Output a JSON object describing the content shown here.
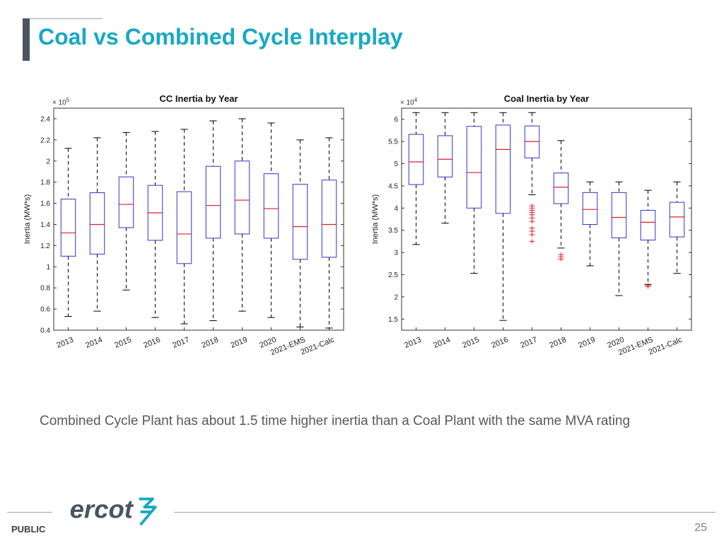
{
  "slide": {
    "title": "Coal vs Combined Cycle Interplay",
    "caption": "Combined Cycle Plant has about 1.5 time higher inertia than a Coal Plant with the same MVA rating",
    "footer_label": "PUBLIC",
    "page_number": "25",
    "logo_text": "ercot"
  },
  "colors": {
    "title": "#17a9c4",
    "box": "#3333cc",
    "median": "#e02020",
    "outlier": "#e02020",
    "whisker": "#000000"
  },
  "chart_data": [
    {
      "type": "box",
      "title": "CC Inertia by Year",
      "ylabel": "Inertia (MW*s)",
      "exponent_label": "× 10^5",
      "ylim": [
        0.4,
        2.5
      ],
      "yticks": [
        0.4,
        0.6,
        0.8,
        1,
        1.2,
        1.4,
        1.6,
        1.8,
        2,
        2.2,
        2.4
      ],
      "categories": [
        "2013",
        "2014",
        "2015",
        "2016",
        "2017",
        "2018",
        "2019",
        "2020",
        "2021-EMS",
        "2021-Calc"
      ],
      "boxes": [
        {
          "min": 0.53,
          "q1": 1.1,
          "median": 1.32,
          "q3": 1.64,
          "max": 2.12,
          "outliers": []
        },
        {
          "min": 0.58,
          "q1": 1.12,
          "median": 1.4,
          "q3": 1.7,
          "max": 2.22,
          "outliers": []
        },
        {
          "min": 0.78,
          "q1": 1.37,
          "median": 1.59,
          "q3": 1.85,
          "max": 2.27,
          "outliers": []
        },
        {
          "min": 0.52,
          "q1": 1.25,
          "median": 1.51,
          "q3": 1.77,
          "max": 2.28,
          "outliers": []
        },
        {
          "min": 0.46,
          "q1": 1.03,
          "median": 1.31,
          "q3": 1.71,
          "max": 2.3,
          "outliers": []
        },
        {
          "min": 0.49,
          "q1": 1.27,
          "median": 1.58,
          "q3": 1.95,
          "max": 2.38,
          "outliers": []
        },
        {
          "min": 0.58,
          "q1": 1.31,
          "median": 1.63,
          "q3": 2.0,
          "max": 2.4,
          "outliers": []
        },
        {
          "min": 0.52,
          "q1": 1.27,
          "median": 1.55,
          "q3": 1.88,
          "max": 2.36,
          "outliers": []
        },
        {
          "min": 0.43,
          "q1": 1.07,
          "median": 1.38,
          "q3": 1.78,
          "max": 2.2,
          "outliers": []
        },
        {
          "min": 0.42,
          "q1": 1.09,
          "median": 1.4,
          "q3": 1.82,
          "max": 2.22,
          "outliers": []
        }
      ]
    },
    {
      "type": "box",
      "title": "Coal Inertia by Year",
      "ylabel": "Inertia (MW*s)",
      "exponent_label": "× 10^4",
      "ylim": [
        1.25,
        6.25
      ],
      "yticks": [
        1.5,
        2,
        2.5,
        3,
        3.5,
        4,
        4.5,
        5,
        5.5,
        6
      ],
      "categories": [
        "2013",
        "2014",
        "2015",
        "2016",
        "2017",
        "2018",
        "2019",
        "2020",
        "2021-EMS",
        "2021-Calc"
      ],
      "boxes": [
        {
          "min": 3.18,
          "q1": 4.53,
          "median": 5.04,
          "q3": 5.66,
          "max": 6.15,
          "outliers": []
        },
        {
          "min": 3.66,
          "q1": 4.7,
          "median": 5.1,
          "q3": 5.63,
          "max": 6.15,
          "outliers": []
        },
        {
          "min": 2.53,
          "q1": 4.0,
          "median": 4.8,
          "q3": 5.84,
          "max": 6.15,
          "outliers": []
        },
        {
          "min": 1.47,
          "q1": 3.88,
          "median": 5.32,
          "q3": 5.87,
          "max": 6.15,
          "outliers": []
        },
        {
          "min": 4.3,
          "q1": 5.13,
          "median": 5.5,
          "q3": 5.85,
          "max": 6.15,
          "outliers": [
            4.05,
            4.0,
            3.95,
            3.9,
            3.85,
            3.78,
            3.7,
            3.55,
            3.48,
            3.4,
            3.25
          ]
        },
        {
          "min": 3.1,
          "q1": 4.1,
          "median": 4.47,
          "q3": 4.79,
          "max": 5.52,
          "outliers": [
            2.95,
            2.9,
            2.85
          ]
        },
        {
          "min": 2.7,
          "q1": 3.63,
          "median": 3.97,
          "q3": 4.35,
          "max": 4.59,
          "outliers": []
        },
        {
          "min": 2.03,
          "q1": 3.33,
          "median": 3.79,
          "q3": 4.35,
          "max": 4.59,
          "outliers": []
        },
        {
          "min": 2.28,
          "q1": 3.28,
          "median": 3.68,
          "q3": 3.95,
          "max": 4.4,
          "outliers": [
            2.26,
            2.23
          ]
        },
        {
          "min": 2.53,
          "q1": 3.35,
          "median": 3.8,
          "q3": 4.13,
          "max": 4.59,
          "outliers": []
        }
      ]
    }
  ]
}
